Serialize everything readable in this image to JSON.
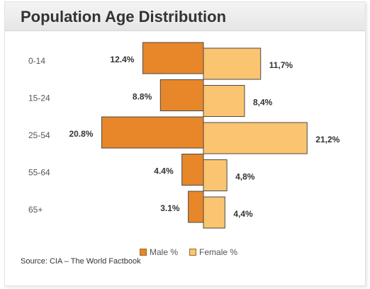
{
  "title": "Population Age Distribution",
  "source": "Source: CIA – The World Factbook",
  "colors": {
    "male": "#e8862a",
    "female": "#fbc470",
    "edge": "#4a4a4a"
  },
  "chart_data": {
    "type": "bar",
    "orientation": "horizontal-diverging",
    "title": "Population Age Distribution",
    "categories": [
      "0-14",
      "15-24",
      "25-54",
      "55-64",
      "65+"
    ],
    "series": [
      {
        "name": "Male %",
        "values": [
          12.4,
          8.8,
          20.8,
          4.4,
          3.1
        ],
        "labels": [
          "12.4%",
          "8.8%",
          "20.8%",
          "4.4%",
          "3.1%"
        ]
      },
      {
        "name": "Female %",
        "values": [
          11.7,
          8.4,
          21.2,
          4.8,
          4.4
        ],
        "labels": [
          "11,7%",
          "8,4%",
          "21,2%",
          "4,8%",
          "4,4%"
        ]
      }
    ],
    "legend": "bottom-center"
  }
}
